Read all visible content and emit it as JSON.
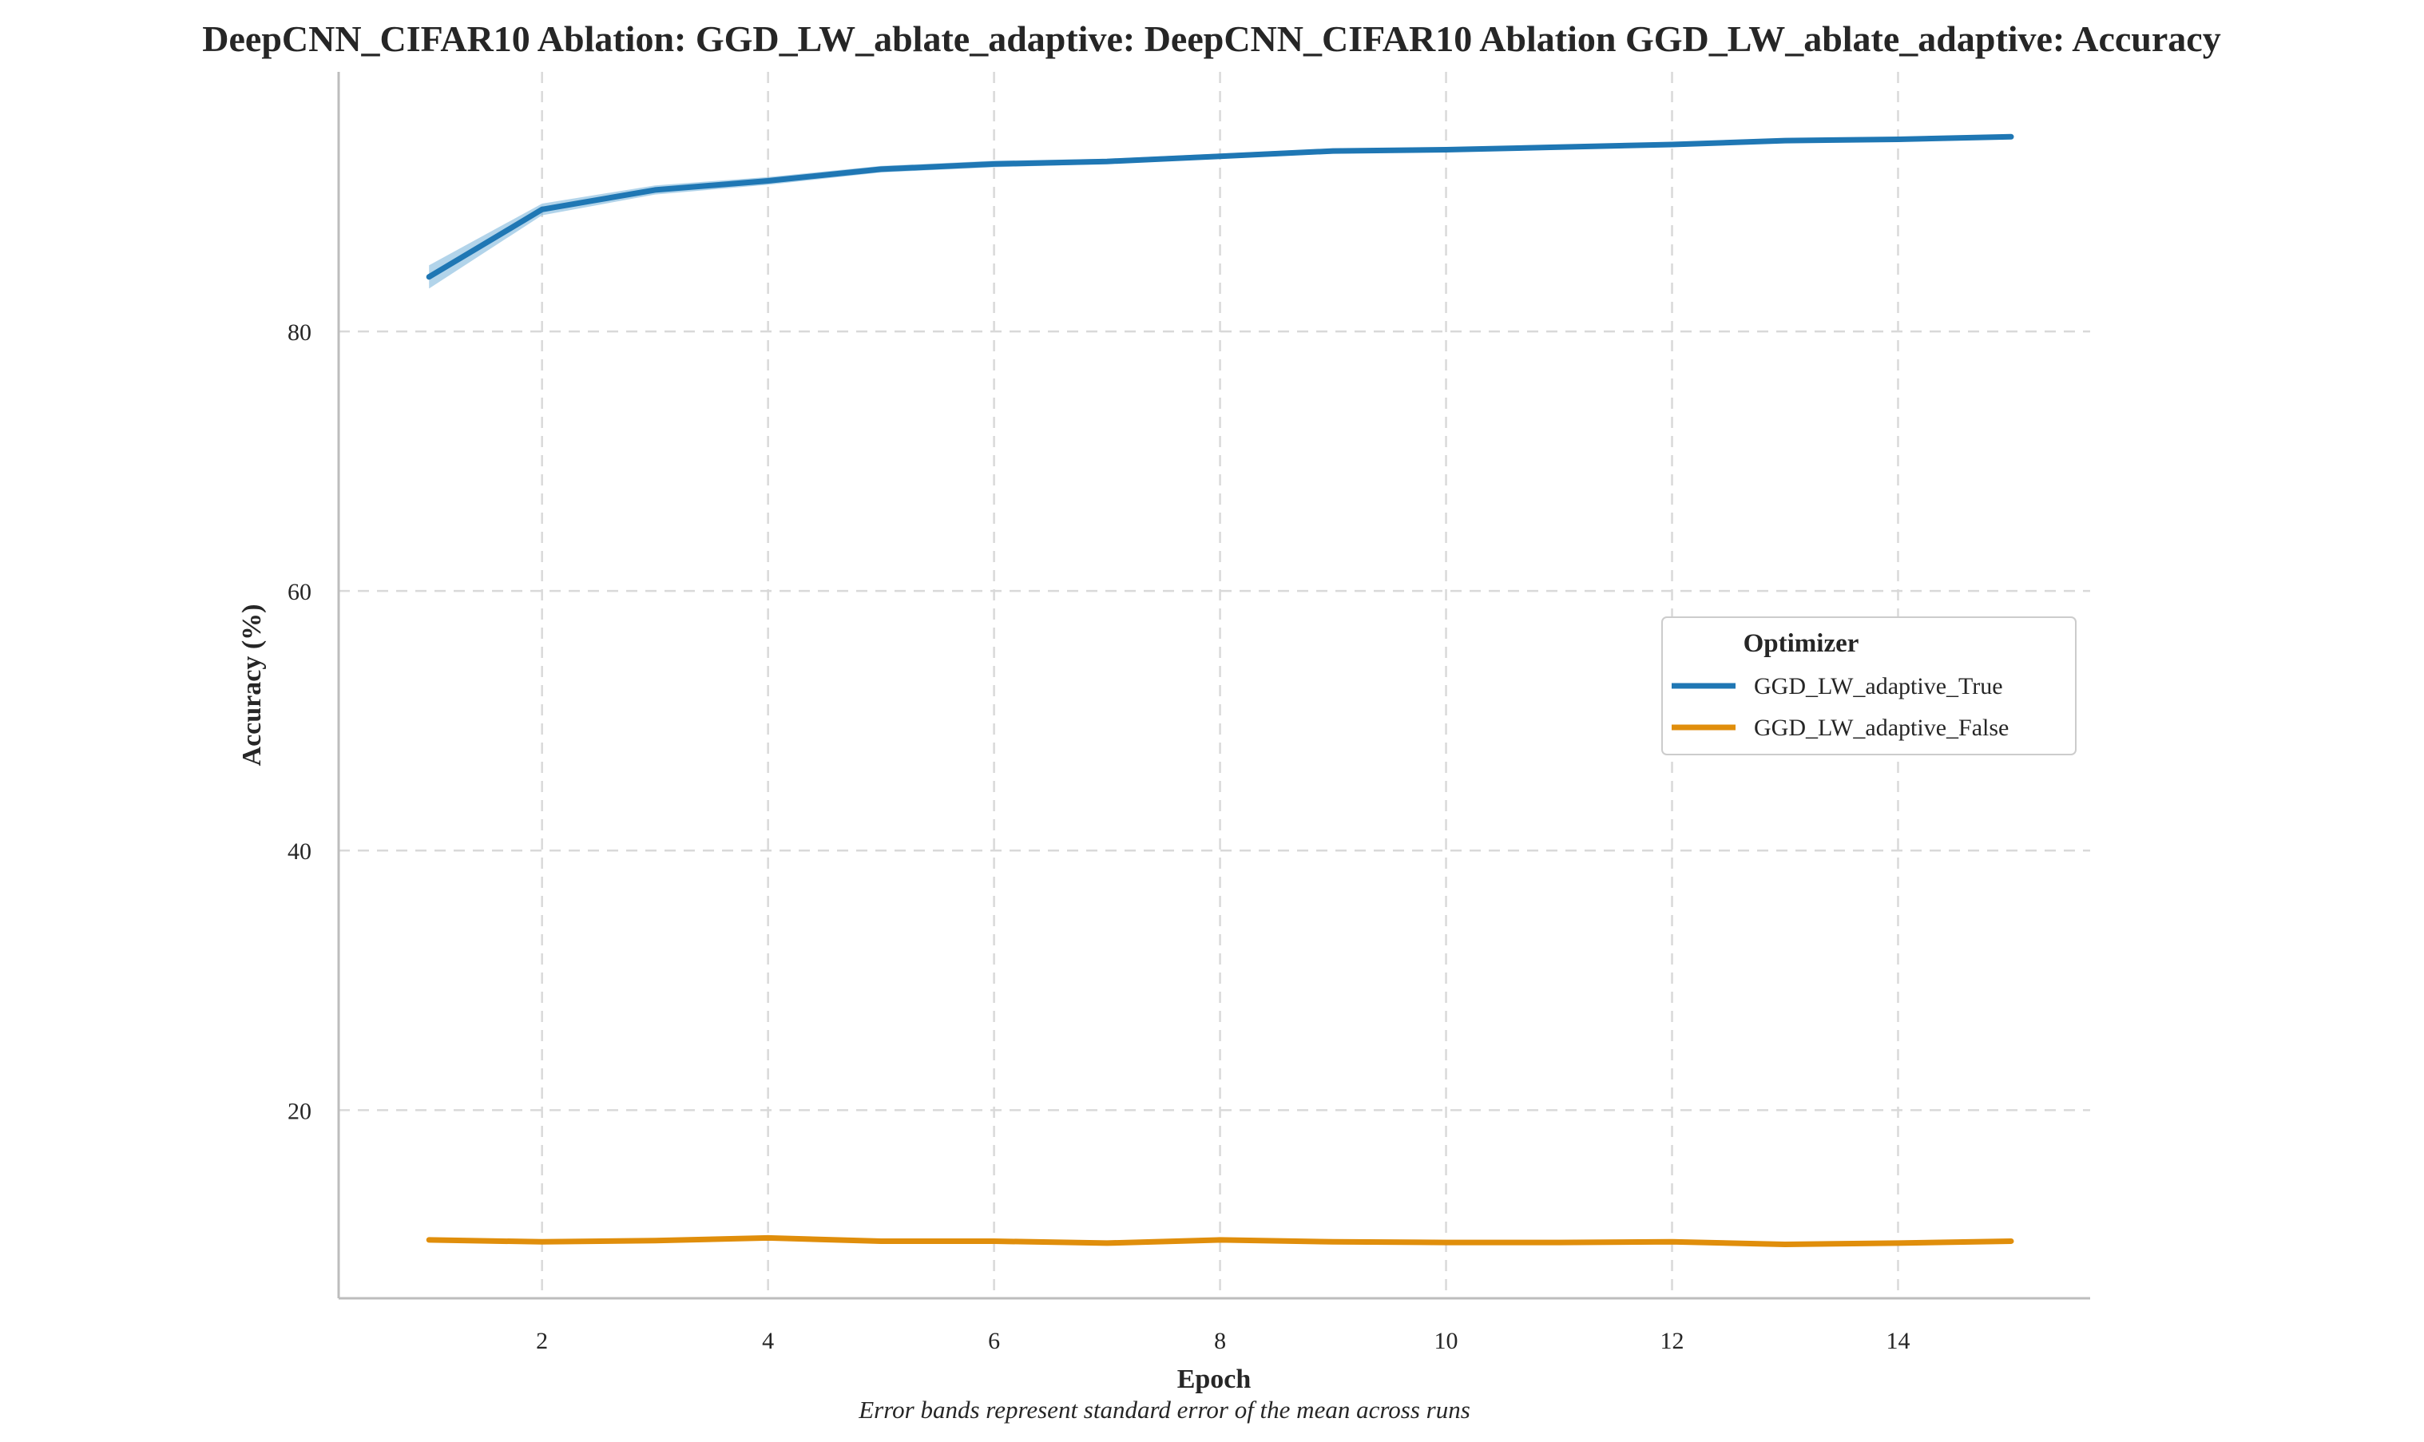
{
  "chart_data": {
    "type": "line",
    "title": "DeepCNN_CIFAR10 Ablation: GGD_LW_ablate_adaptive: DeepCNN_CIFAR10 Ablation GGD_LW_ablate_adaptive: Accuracy",
    "xlabel": "Epoch",
    "ylabel": "Accuracy (%)",
    "caption": "Error bands represent standard error of the mean across runs",
    "xlim": [
      0.2,
      15.7
    ],
    "ylim": [
      5.5,
      100
    ],
    "xticks": [
      2,
      4,
      6,
      8,
      10,
      12,
      14
    ],
    "yticks": [
      20,
      40,
      60,
      80
    ],
    "grid": true,
    "legend": {
      "title": "Optimizer",
      "placement": "center-right"
    },
    "x": [
      1,
      2,
      3,
      4,
      5,
      6,
      7,
      8,
      9,
      10,
      11,
      12,
      13,
      14,
      15
    ],
    "series": [
      {
        "name": "GGD_LW_adaptive_True",
        "color": "#1f77b4",
        "band_color": "#7fb8dc",
        "values": [
          84.2,
          89.4,
          90.9,
          91.6,
          92.5,
          92.9,
          93.1,
          93.5,
          93.9,
          94.0,
          94.2,
          94.4,
          94.7,
          94.8,
          95.0
        ],
        "errors": [
          0.9,
          0.45,
          0.35,
          0.3,
          0.25,
          0.25,
          0.2,
          0.2,
          0.2,
          0.18,
          0.18,
          0.17,
          0.17,
          0.2,
          0.15
        ]
      },
      {
        "name": "GGD_LW_adaptive_False",
        "color": "#e08e0b",
        "band_color": "#f3c987",
        "values": [
          10.0,
          9.85,
          9.95,
          10.15,
          9.9,
          9.9,
          9.75,
          10.0,
          9.85,
          9.8,
          9.8,
          9.85,
          9.65,
          9.75,
          9.9
        ],
        "errors": [
          0.1,
          0.1,
          0.1,
          0.1,
          0.1,
          0.1,
          0.1,
          0.1,
          0.1,
          0.1,
          0.1,
          0.1,
          0.1,
          0.1,
          0.1
        ]
      }
    ]
  }
}
